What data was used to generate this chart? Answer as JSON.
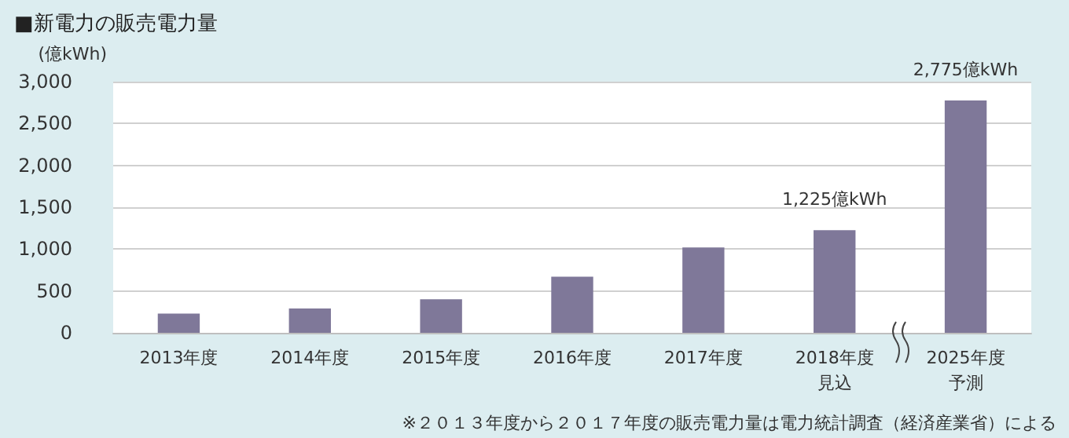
{
  "chart_data": {
    "type": "bar",
    "title": "■新電力の販売電力量",
    "ylabel": "(億kWh)",
    "categories": [
      "2013年度",
      "2014年度",
      "2015年度",
      "2016年度",
      "2017年度",
      "2018年度見込",
      "2025年度予測"
    ],
    "values": [
      230,
      290,
      400,
      670,
      1020,
      1225,
      2775
    ],
    "value_labels": [
      null,
      null,
      null,
      null,
      null,
      "1,225億kWh",
      "2,775億kWh"
    ],
    "color": "#7f7899",
    "ylim": [
      0,
      3000
    ],
    "yticks": [
      {
        "value": 0,
        "label": "0"
      },
      {
        "value": 500,
        "label": "500"
      },
      {
        "value": 1000,
        "label": "1,000"
      },
      {
        "value": 1500,
        "label": "1,500"
      },
      {
        "value": 2000,
        "label": "2,000"
      },
      {
        "value": 2500,
        "label": "2,500"
      },
      {
        "value": 3000,
        "label": "3,000"
      }
    ],
    "grid": "y",
    "annotations": [
      "※２０１３年度から２０１７年度の販売電力量は電力統計調査（経済産業省）による"
    ]
  }
}
